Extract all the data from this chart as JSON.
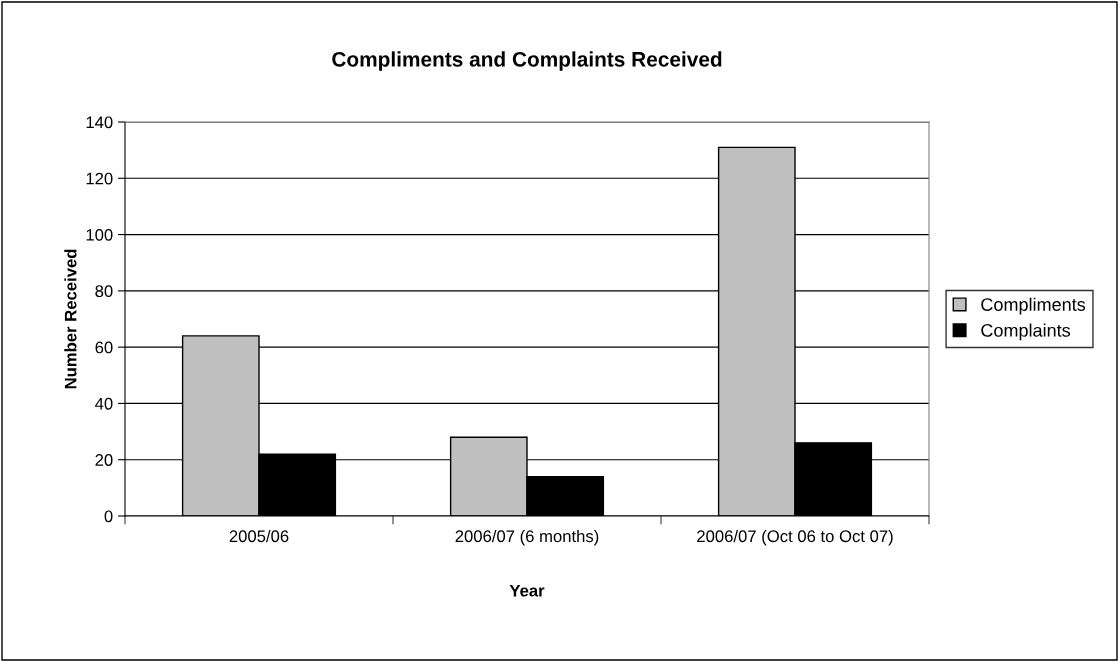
{
  "chart_data": {
    "type": "bar",
    "title": "Compliments and Complaints Received",
    "xlabel": "Year",
    "ylabel": "Number Received",
    "categories": [
      "2005/06",
      "2006/07 (6 months)",
      "2006/07 (Oct 06 to Oct 07)"
    ],
    "series": [
      {
        "name": "Compliments",
        "color": "#c0c0c0",
        "values": [
          64,
          28,
          131
        ]
      },
      {
        "name": "Complaints",
        "color": "#000000",
        "values": [
          22,
          14,
          26
        ]
      }
    ],
    "ylim": [
      0,
      140
    ],
    "yticks": [
      0,
      20,
      40,
      60,
      80,
      100,
      120,
      140
    ],
    "grid": "y",
    "legend": "right"
  }
}
